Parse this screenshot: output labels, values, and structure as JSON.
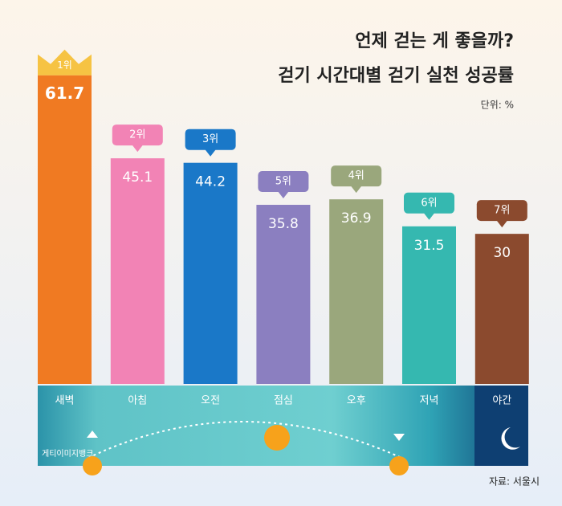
{
  "chart_data": {
    "type": "bar",
    "title": "언제 걷는 게 좋을까?",
    "subtitle": "걷기 시간대별 걷기 실천 성공률",
    "unit": "단위: %",
    "source": "자료: 서울시",
    "credit": "게티이미지뱅크",
    "categories": [
      "새벽",
      "아침",
      "오전",
      "점심",
      "오후",
      "저녁",
      "야간"
    ],
    "values": [
      61.7,
      45.1,
      44.2,
      35.8,
      36.9,
      31.5,
      30
    ],
    "ranks": [
      "1위",
      "2위",
      "3위",
      "5위",
      "4위",
      "6위",
      "7위"
    ],
    "colors": [
      "#f07a22",
      "#f283b5",
      "#1a78c8",
      "#8b7fc0",
      "#9aa77c",
      "#35b8b0",
      "#8b4a2e"
    ],
    "ylim": [
      0,
      70
    ]
  }
}
